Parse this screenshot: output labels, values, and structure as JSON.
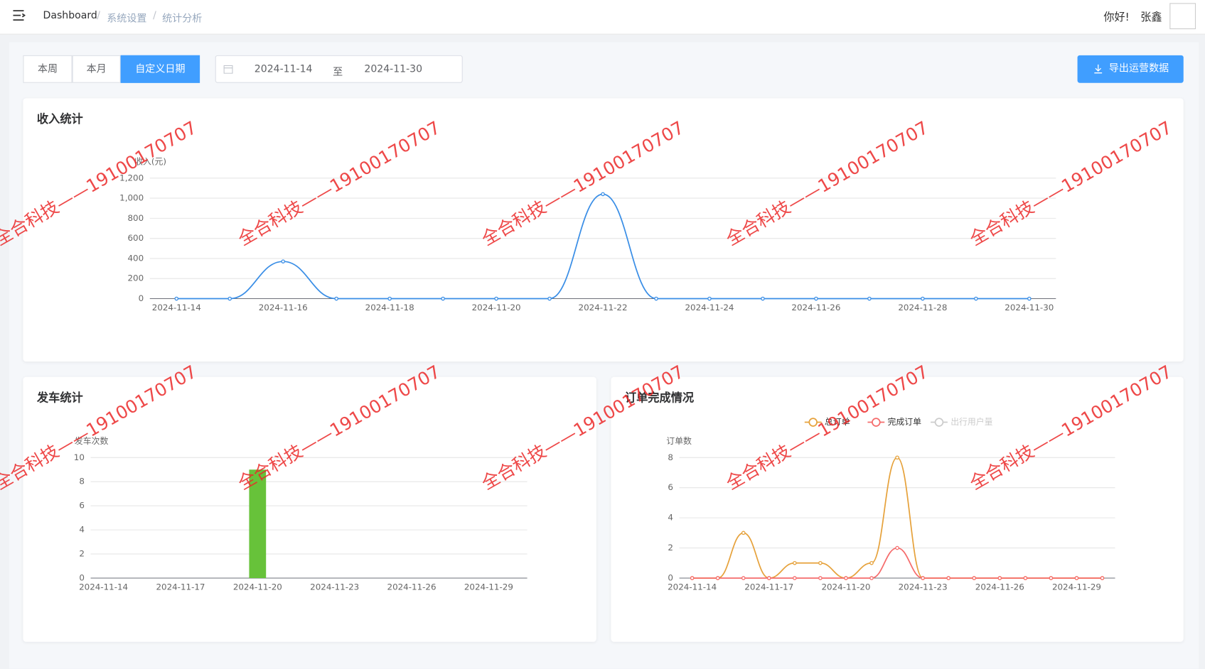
{
  "header": {
    "breadcrumb": [
      "Dashboard",
      "系统设置",
      "统计分析"
    ],
    "greeting": "你好!",
    "user": "张鑫"
  },
  "toolbar": {
    "tabs": [
      "本周",
      "本月",
      "自定义日期"
    ],
    "active_tab": 2,
    "date_start": "2024-11-14",
    "date_separator": "至",
    "date_end": "2024-11-30",
    "export_button": "导出运营数据"
  },
  "watermark": "全合科技——19100170707",
  "chart_data": [
    {
      "type": "line",
      "title": "收入统计",
      "y_axis_label": "收入(元)",
      "color": "#3a8ee6",
      "categories": [
        "2024-11-14",
        null,
        "2024-11-16",
        null,
        "2024-11-18",
        null,
        "2024-11-20",
        null,
        "2024-11-22",
        null,
        "2024-11-24",
        null,
        "2024-11-26",
        null,
        "2024-11-28",
        null,
        "2024-11-30"
      ],
      "series": [
        {
          "name": "收入",
          "color": "#3a8ee6",
          "values": [
            0,
            0,
            370,
            0,
            0,
            0,
            0,
            0,
            1040,
            0,
            0,
            0,
            0,
            0,
            0,
            0,
            0
          ]
        }
      ],
      "ylim": [
        0,
        1200
      ],
      "yticks": [
        0,
        200,
        400,
        600,
        800,
        {
          "value": 1000,
          "label": "1,000"
        },
        {
          "value": 1200,
          "label": "1,200"
        }
      ],
      "grid": true,
      "smooth": true
    },
    {
      "type": "bar",
      "title": "发车统计",
      "y_axis_label": "发车次数",
      "color": "#67c23a",
      "categories": [
        "2024-11-14",
        null,
        null,
        "2024-11-17",
        null,
        null,
        "2024-11-20",
        null,
        null,
        "2024-11-23",
        null,
        null,
        "2024-11-26",
        null,
        null,
        "2024-11-29",
        null
      ],
      "values": [
        0,
        0,
        0,
        0,
        0,
        0,
        9,
        0,
        0,
        0,
        0,
        0,
        0,
        0,
        0,
        0,
        0
      ],
      "ylim": [
        0,
        10
      ],
      "yticks": [
        0,
        2,
        4,
        6,
        8,
        10
      ],
      "grid": true
    },
    {
      "type": "line",
      "title": "订单完成情况",
      "y_axis_label": "订单数",
      "categories": [
        "2024-11-14",
        null,
        null,
        "2024-11-17",
        null,
        null,
        "2024-11-20",
        null,
        null,
        "2024-11-23",
        null,
        null,
        "2024-11-26",
        null,
        null,
        "2024-11-29",
        null
      ],
      "series": [
        {
          "name": "总订单",
          "color": "#e6a23c",
          "values": [
            0,
            0,
            3,
            0,
            1,
            1,
            0,
            1,
            8,
            0,
            0,
            0,
            0,
            0,
            0,
            0,
            0
          ]
        },
        {
          "name": "完成订单",
          "color": "#f56c6c",
          "values": [
            0,
            0,
            0,
            0,
            0,
            0,
            0,
            0,
            2,
            0,
            0,
            0,
            0,
            0,
            0,
            0,
            0
          ]
        }
      ],
      "legend_inactive": [
        "出行用户量"
      ],
      "legend_position": "top",
      "ylim": [
        0,
        8
      ],
      "yticks": [
        0,
        2,
        4,
        6,
        8
      ],
      "grid": true,
      "smooth": true
    }
  ]
}
